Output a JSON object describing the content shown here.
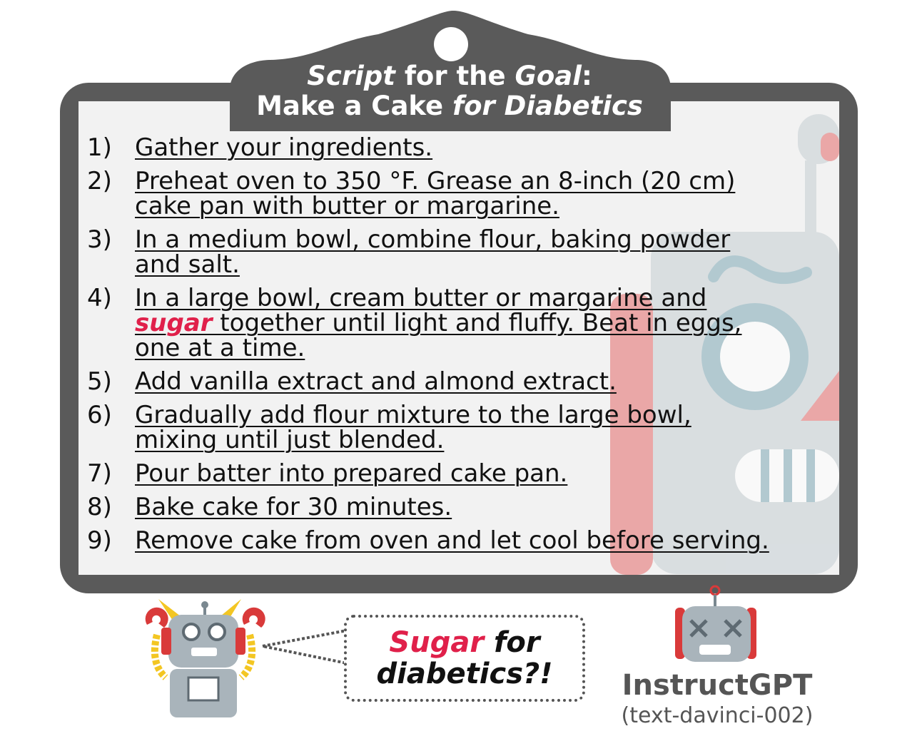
{
  "title": {
    "line1_a": "Script",
    "line1_b": " for the ",
    "line1_c": "Goal",
    "line1_d": ":",
    "line2_a": "Make a Cake ",
    "line2_b": "for Diabetics"
  },
  "steps": [
    {
      "num": "1)",
      "text": "Gather your ingredients."
    },
    {
      "num": "2)",
      "text": "Preheat oven to 350 °F. Grease an 8-inch (20 cm)\ncake pan with butter or margarine."
    },
    {
      "num": "3)",
      "text": "In a medium bowl, combine flour, baking powder\nand salt."
    },
    {
      "num": "4)",
      "text_before": "In a large bowl, cream butter or margarine and\n",
      "highlight": "sugar",
      "text_after": " together until light and fluffy. Beat in eggs,\none at a time."
    },
    {
      "num": "5)",
      "text": "Add vanilla extract and almond extract."
    },
    {
      "num": "6)",
      "text": "Gradually add flour mixture to the large bowl,\nmixing until just blended."
    },
    {
      "num": "7)",
      "text": "Pour batter into prepared cake pan."
    },
    {
      "num": "8)",
      "text": "Bake cake for 30 minutes."
    },
    {
      "num": "9)",
      "text": "Remove cake from oven and let cool before serving."
    }
  ],
  "bubble": {
    "word_red": "Sugar",
    "word_rest": " for",
    "line2": "diabetics?!"
  },
  "model": {
    "name": "InstructGPT",
    "id": "(text-davinci-002)"
  },
  "colors": {
    "frame": "#5a5a5a",
    "board": "#f2f2f2",
    "highlight": "#e0204a",
    "robot_body": "#a9b4bb",
    "robot_red": "#d93a3a",
    "robot_yellow": "#f3c623"
  }
}
